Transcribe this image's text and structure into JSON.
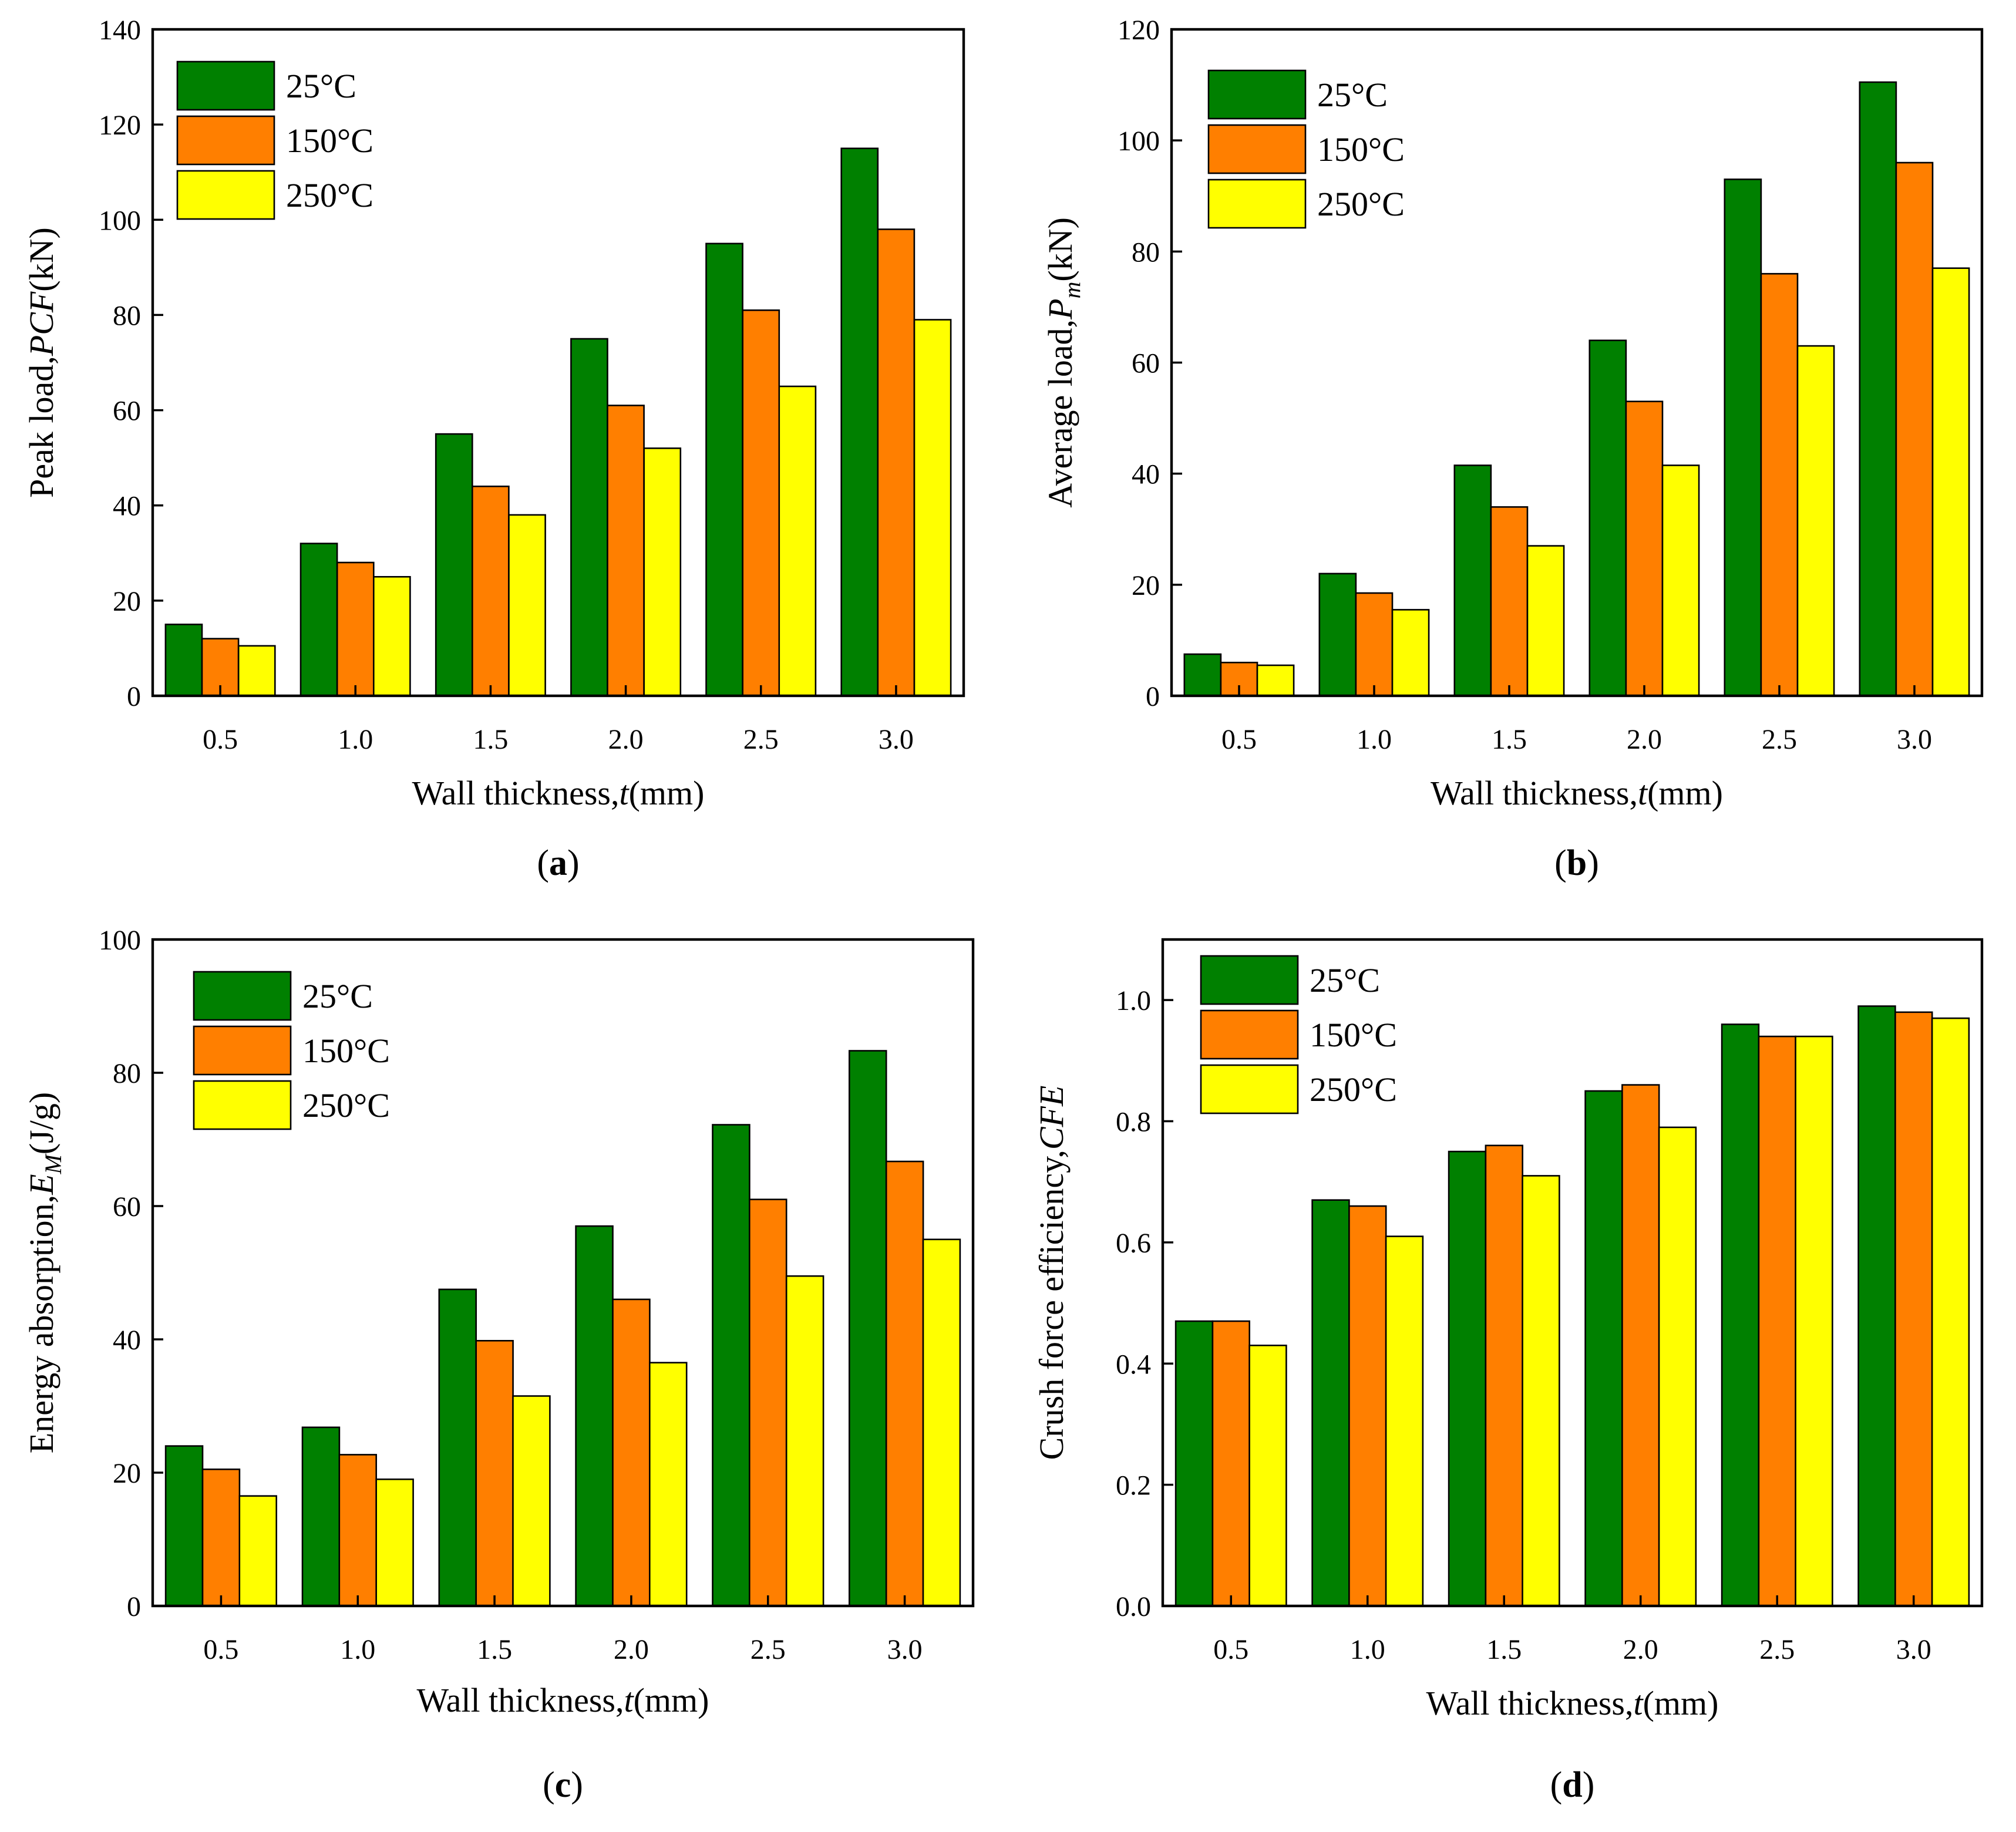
{
  "colors": {
    "s25": "#008000",
    "s150": "#ff7f00",
    "s250": "#ffff00"
  },
  "chart_data": [
    {
      "type": "bar",
      "panel": "a",
      "ylabel_pre": "Peak load,",
      "ylabel_it": "PCF",
      "ylabel_post": "(kN)",
      "xlabel_pre": "Wall thickness,",
      "xlabel_it": "t",
      "xlabel_post": "(mm)",
      "categories": [
        "0.5",
        "1.0",
        "1.5",
        "2.0",
        "2.5",
        "3.0"
      ],
      "series": [
        {
          "name": "25°C",
          "values": [
            15,
            32,
            55,
            75,
            95,
            115
          ]
        },
        {
          "name": "150°C",
          "values": [
            12,
            28,
            44,
            61,
            81,
            98
          ]
        },
        {
          "name": "250°C",
          "values": [
            10.5,
            25,
            38,
            52,
            65,
            79
          ]
        }
      ],
      "ylim": [
        0,
        140
      ],
      "yticks": [
        "0",
        "20",
        "40",
        "60",
        "80",
        "100",
        "120",
        "140"
      ],
      "legend": "top-left"
    },
    {
      "type": "bar",
      "panel": "b",
      "ylabel_pre": "Average load,",
      "ylabel_it": "P",
      "ylabel_sub": "m",
      "ylabel_post": "(kN)",
      "xlabel_pre": "Wall thickness,",
      "xlabel_it": "t",
      "xlabel_post": "(mm)",
      "categories": [
        "0.5",
        "1.0",
        "1.5",
        "2.0",
        "2.5",
        "3.0"
      ],
      "series": [
        {
          "name": "25°C",
          "values": [
            7.5,
            22,
            41.5,
            64,
            93,
            110.5
          ]
        },
        {
          "name": "150°C",
          "values": [
            6,
            18.5,
            34,
            53,
            76,
            96
          ]
        },
        {
          "name": "250°C",
          "values": [
            5.5,
            15.5,
            27,
            41.5,
            63,
            77
          ]
        }
      ],
      "ylim": [
        0,
        120
      ],
      "yticks": [
        "0",
        "20",
        "40",
        "60",
        "80",
        "100",
        "120"
      ],
      "legend": "top-left"
    },
    {
      "type": "bar",
      "panel": "c",
      "ylabel_pre": "Energy absorption,",
      "ylabel_it": "E",
      "ylabel_sub": "M",
      "ylabel_post": "(J/g)",
      "xlabel_pre": "Wall thickness,",
      "xlabel_it": "t",
      "xlabel_post": "(mm)",
      "categories": [
        "0.5",
        "1.0",
        "1.5",
        "2.0",
        "2.5",
        "3.0"
      ],
      "series": [
        {
          "name": "25°C",
          "values": [
            24,
            26.8,
            47.5,
            57,
            72.2,
            83.3
          ]
        },
        {
          "name": "150°C",
          "values": [
            20.5,
            22.7,
            39.8,
            46,
            61,
            66.7
          ]
        },
        {
          "name": "250°C",
          "values": [
            16.5,
            19,
            31.5,
            36.5,
            49.5,
            55
          ]
        }
      ],
      "ylim": [
        0,
        100
      ],
      "yticks": [
        "0",
        "20",
        "40",
        "60",
        "80",
        "100"
      ],
      "legend": "top-left"
    },
    {
      "type": "bar",
      "panel": "d",
      "ylabel_pre": "Crush force efficiency,",
      "ylabel_it": "CFE",
      "ylabel_post": "",
      "xlabel_pre": "Wall thickness,",
      "xlabel_it": "t",
      "xlabel_post": "(mm)",
      "categories": [
        "0.5",
        "1.0",
        "1.5",
        "2.0",
        "2.5",
        "3.0"
      ],
      "series": [
        {
          "name": "25°C",
          "values": [
            0.47,
            0.67,
            0.75,
            0.85,
            0.96,
            0.99
          ]
        },
        {
          "name": "150°C",
          "values": [
            0.47,
            0.66,
            0.76,
            0.86,
            0.94,
            0.98
          ]
        },
        {
          "name": "250°C",
          "values": [
            0.43,
            0.61,
            0.71,
            0.79,
            0.94,
            0.97
          ]
        }
      ],
      "ylim": [
        0,
        1.1
      ],
      "yticks": [
        "0.0",
        "0.2",
        "0.4",
        "0.6",
        "0.8",
        "1.0"
      ],
      "legend": "top-left"
    }
  ]
}
